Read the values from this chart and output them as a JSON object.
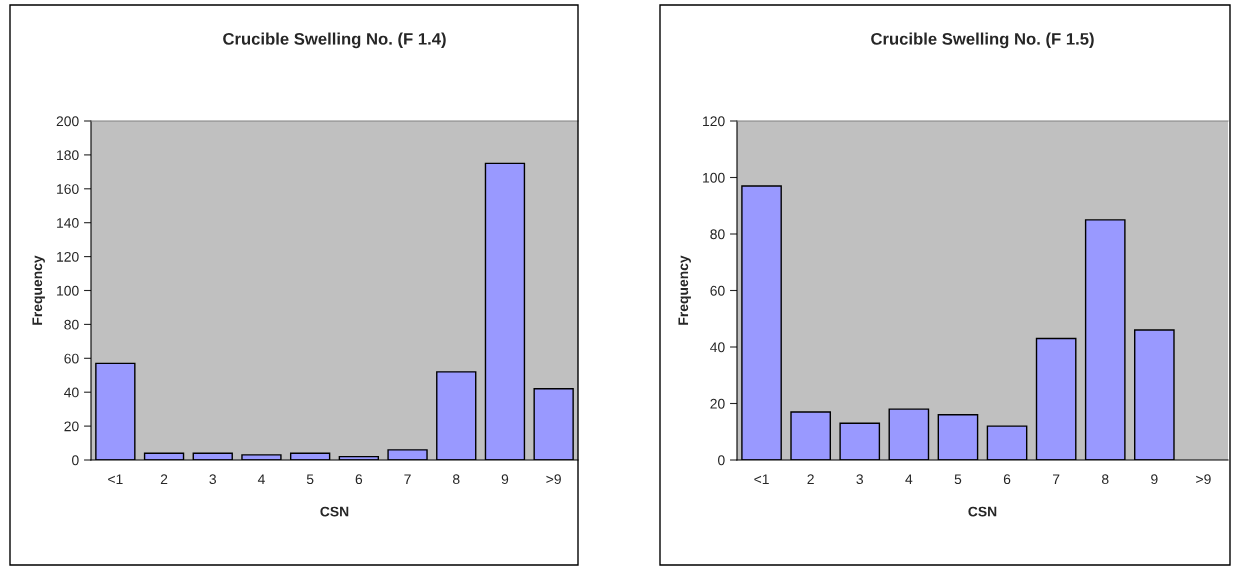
{
  "chart_data": [
    {
      "type": "bar",
      "title": "Crucible Swelling No. (F 1.4)",
      "xlabel": "CSN",
      "ylabel": "Frequency",
      "categories": [
        "<1",
        "2",
        "3",
        "4",
        "5",
        "6",
        "7",
        "8",
        "9",
        ">9"
      ],
      "values": [
        57,
        4,
        4,
        3,
        4,
        2,
        6,
        52,
        175,
        42
      ],
      "color": "#9999ff",
      "ylim": [
        0,
        200
      ],
      "yticks": [
        0,
        20,
        40,
        60,
        80,
        100,
        120,
        140,
        160,
        180,
        200
      ],
      "grid": false,
      "legend": false
    },
    {
      "type": "bar",
      "title": "Crucible Swelling No. (F 1.5)",
      "xlabel": "CSN",
      "ylabel": "Frequency",
      "categories": [
        "<1",
        "2",
        "3",
        "4",
        "5",
        "6",
        "7",
        "8",
        "9",
        ">9"
      ],
      "values": [
        97,
        17,
        13,
        18,
        16,
        12,
        43,
        85,
        46,
        null
      ],
      "color": "#9999ff",
      "ylim": [
        0,
        120
      ],
      "yticks": [
        0,
        20,
        40,
        60,
        80,
        100,
        120
      ],
      "grid": false,
      "legend": false
    }
  ]
}
